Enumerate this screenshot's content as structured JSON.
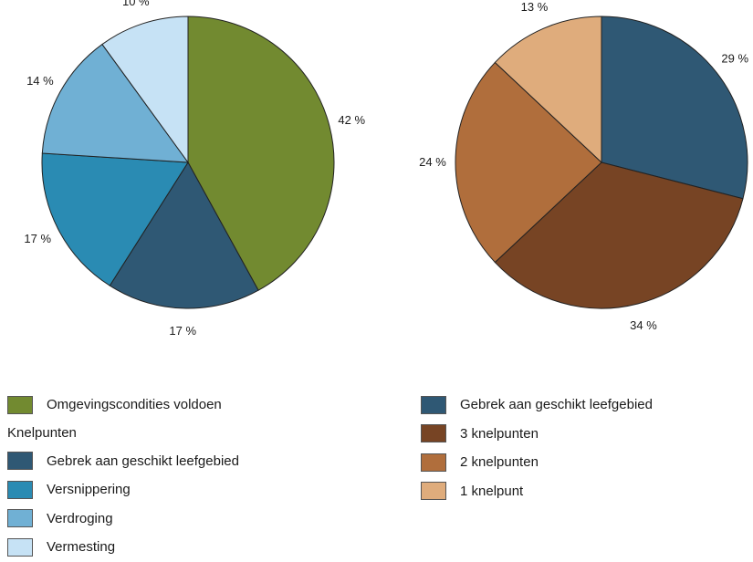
{
  "chart_data": [
    {
      "type": "pie",
      "title": "",
      "slices": [
        {
          "label": "Omgevingscondities voldoen",
          "value": 42,
          "value_label": "42 %",
          "color": "#728a30"
        },
        {
          "label": "Gebrek aan geschikt leefgebied",
          "value": 17,
          "value_label": "17 %",
          "color": "#2f5874"
        },
        {
          "label": "Versnippering",
          "value": 17,
          "value_label": "17 %",
          "color": "#2a8bb3"
        },
        {
          "label": "Verdroging",
          "value": 14,
          "value_label": "14 %",
          "color": "#70b0d4"
        },
        {
          "label": "Vermesting",
          "value": 10,
          "value_label": "10 %",
          "color": "#c6e2f5"
        }
      ],
      "legend": {
        "heading": "Knelpunten",
        "items": [
          {
            "label": "Omgevingscondities voldoen",
            "color": "#728a30"
          },
          {
            "label": "Gebrek aan geschikt leefgebied",
            "color": "#2f5874"
          },
          {
            "label": "Versnippering",
            "color": "#2a8bb3"
          },
          {
            "label": "Verdroging",
            "color": "#70b0d4"
          },
          {
            "label": "Vermesting",
            "color": "#c6e2f5"
          }
        ]
      }
    },
    {
      "type": "pie",
      "title": "",
      "slices": [
        {
          "label": "Gebrek aan geschikt leefgebied",
          "value": 29,
          "value_label": "29 %",
          "color": "#2f5874"
        },
        {
          "label": "3 knelpunten",
          "value": 34,
          "value_label": "34 %",
          "color": "#774424"
        },
        {
          "label": "2 knelpunten",
          "value": 24,
          "value_label": "24 %",
          "color": "#b06e3c"
        },
        {
          "label": "1 knelpunt",
          "value": 13,
          "value_label": "13 %",
          "color": "#dfac7c"
        }
      ],
      "legend": {
        "items": [
          {
            "label": "Gebrek aan geschikt leefgebied",
            "color": "#2f5874"
          },
          {
            "label": "3 knelpunten",
            "color": "#774424"
          },
          {
            "label": "2 knelpunten",
            "color": "#b06e3c"
          },
          {
            "label": "1 knelpunt",
            "color": "#dfac7c"
          }
        ]
      }
    }
  ]
}
